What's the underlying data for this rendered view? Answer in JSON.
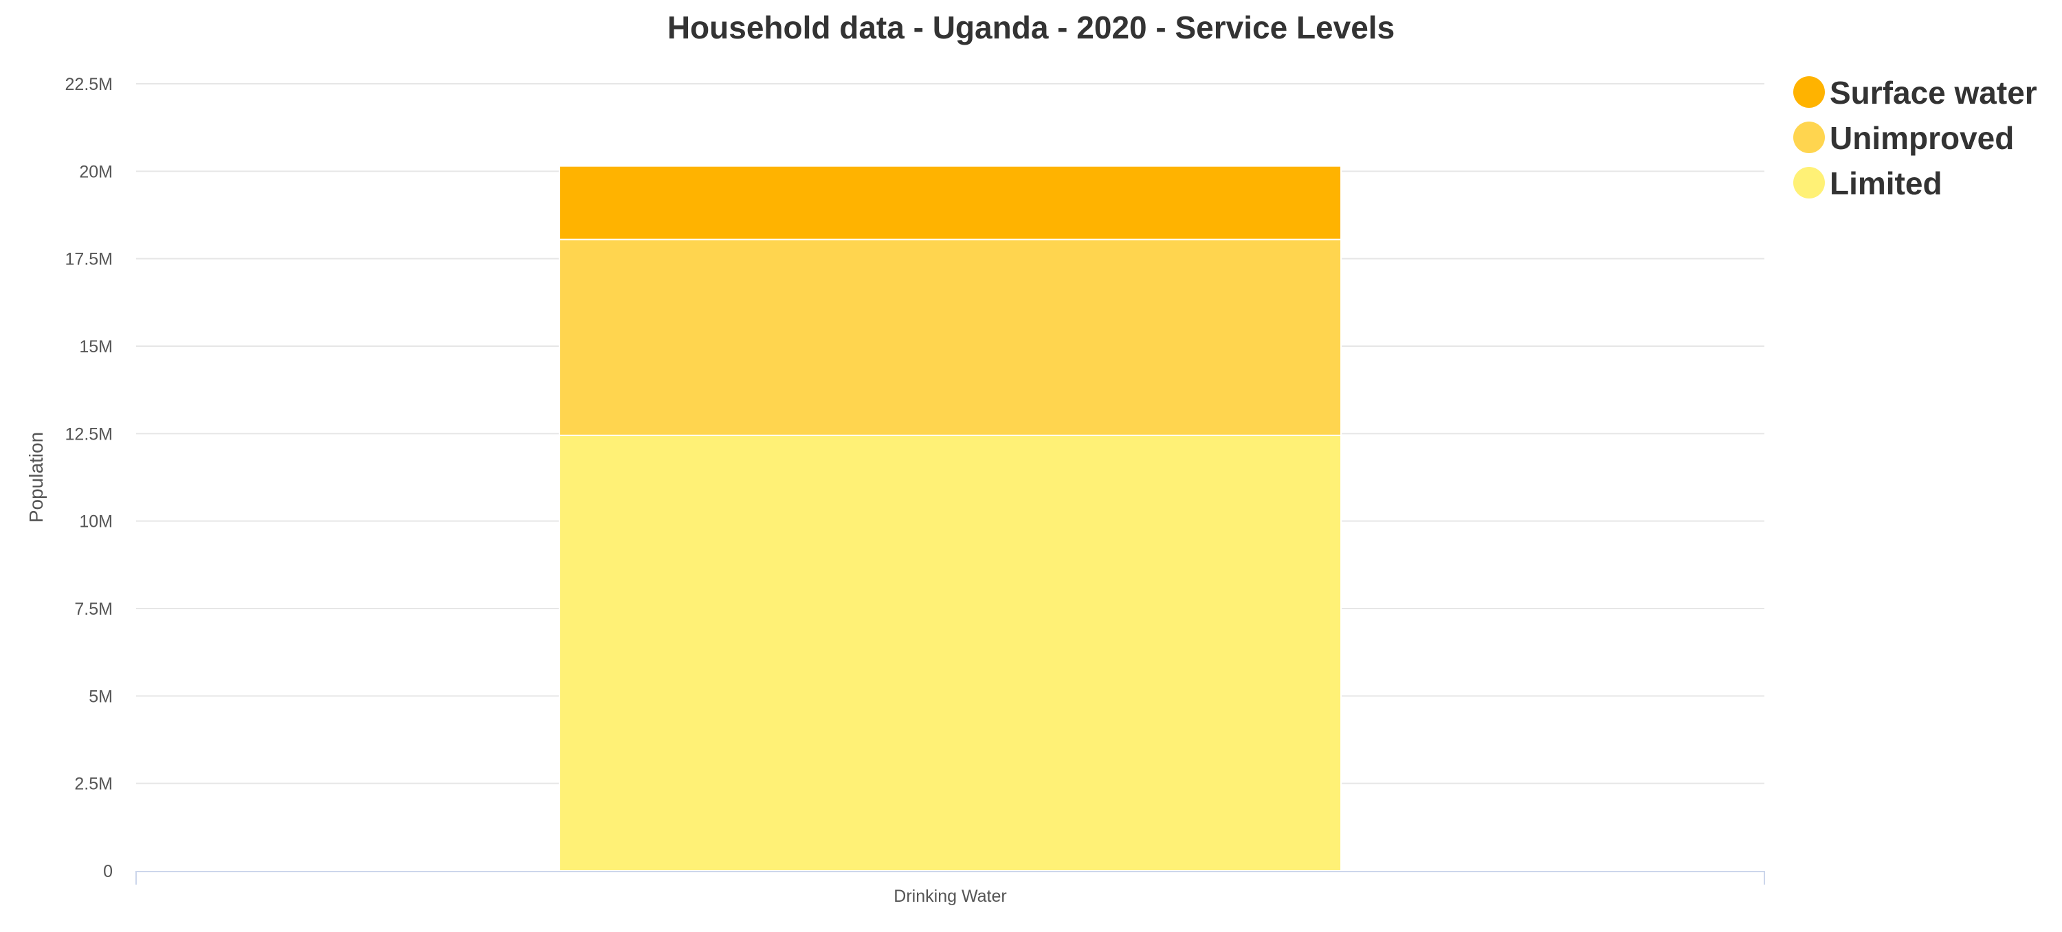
{
  "chart_data": {
    "type": "bar",
    "stacked": true,
    "title": "Household data - Uganda - 2020 - Service Levels",
    "xlabel": "",
    "ylabel": "Population",
    "categories": [
      "Drinking Water"
    ],
    "ylim": [
      0,
      22500000
    ],
    "yticks": [
      0,
      2500000,
      5000000,
      7500000,
      10000000,
      12500000,
      15000000,
      17500000,
      20000000,
      22500000
    ],
    "ytick_labels": [
      "0",
      "2.5M",
      "5M",
      "7.5M",
      "10M",
      "12.5M",
      "15M",
      "17.5M",
      "20M",
      "22.5M"
    ],
    "series": [
      {
        "name": "Limited",
        "color": "#fff176",
        "values": [
          12450000
        ]
      },
      {
        "name": "Unimproved",
        "color": "#ffd54f",
        "values": [
          5600000
        ]
      },
      {
        "name": "Surface water",
        "color": "#ffb300",
        "values": [
          2100000
        ]
      }
    ],
    "legend": {
      "position": "top-right",
      "items": [
        {
          "label": "Surface water",
          "color": "#ffb300"
        },
        {
          "label": "Unimproved",
          "color": "#ffd54f"
        },
        {
          "label": "Limited",
          "color": "#fff176"
        }
      ]
    },
    "grid": true
  }
}
